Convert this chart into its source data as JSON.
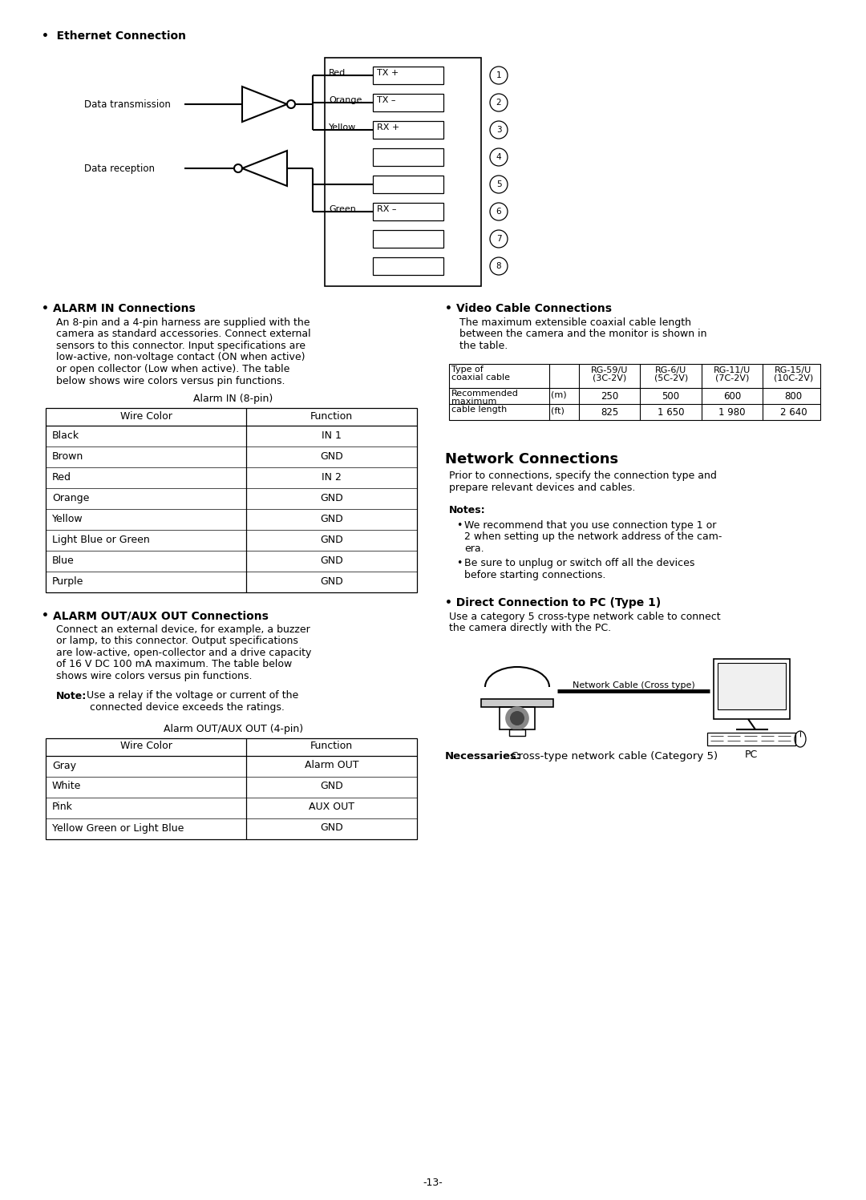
{
  "page_bg": "#ffffff",
  "page_num": "-13-",
  "sections": {
    "ethernet": {
      "title": "•  Ethernet Connection"
    },
    "alarm_in": {
      "title": "ALARM IN Connections",
      "body_lines": [
        "An 8-pin and a 4-pin harness are supplied with the",
        "camera as standard accessories. Connect external",
        "sensors to this connector. Input specifications are",
        "low-active, non-voltage contact (ON when active)",
        "or open collector (Low when active). The table",
        "below shows wire colors versus pin functions."
      ],
      "table_title": "Alarm IN (8-pin)",
      "table_headers": [
        "Wire Color",
        "Function"
      ],
      "table_rows": [
        [
          "Black",
          "IN 1"
        ],
        [
          "Brown",
          "GND"
        ],
        [
          "Red",
          "IN 2"
        ],
        [
          "Orange",
          "GND"
        ],
        [
          "Yellow",
          "GND"
        ],
        [
          "Light Blue or Green",
          "GND"
        ],
        [
          "Blue",
          "GND"
        ],
        [
          "Purple",
          "GND"
        ]
      ]
    },
    "alarm_out": {
      "title": "ALARM OUT/AUX OUT Connections",
      "body_lines": [
        "Connect an external device, for example, a buzzer",
        "or lamp, to this connector. Output specifications",
        "are low-active, open-collector and a drive capacity",
        "of 16 V DC 100 mA maximum. The table below",
        "shows wire colors versus pin functions."
      ],
      "table_title": "Alarm OUT/AUX OUT (4-pin)",
      "table_headers": [
        "Wire Color",
        "Function"
      ],
      "table_rows": [
        [
          "Gray",
          "Alarm OUT"
        ],
        [
          "White",
          "GND"
        ],
        [
          "Pink",
          "AUX OUT"
        ],
        [
          "Yellow Green or Light Blue",
          "GND"
        ]
      ]
    },
    "video_cable": {
      "title": "Video Cable Connections",
      "body_lines": [
        "The maximum extensible coaxial cable length",
        "between the camera and the monitor is shown in",
        "the table."
      ],
      "col_headers": [
        "Type of\ncoaxial cable",
        "",
        "RG-59/U\n(3C-2V)",
        "RG-6/U\n(5C-2V)",
        "RG-11/U\n(7C-2V)",
        "RG-15/U\n(10C-2V)"
      ],
      "row_label": "Recommended\nmaximum\ncable length",
      "row1": [
        "(m)",
        "250",
        "500",
        "600",
        "800"
      ],
      "row2": [
        "(ft)",
        "825",
        "1 650",
        "1 980",
        "2 640"
      ]
    },
    "network": {
      "title": "Network Connections",
      "body_lines": [
        "Prior to connections, specify the connection type and",
        "prepare relevant devices and cables."
      ],
      "notes_title": "Notes:",
      "note1_lines": [
        "We recommend that you use connection type 1 or",
        "2 when setting up the network address of the cam-",
        "era."
      ],
      "note2_lines": [
        "Be sure to unplug or switch off all the devices",
        "before starting connections."
      ],
      "direct_title": "• Direct Connection to PC (Type 1)",
      "direct_body": [
        "Use a category 5 cross-type network cable to connect",
        "the camera directly with the PC."
      ],
      "necessaries_bold": "Necessaries:",
      "necessaries_normal": " Cross-type network cable (Category 5)"
    }
  }
}
